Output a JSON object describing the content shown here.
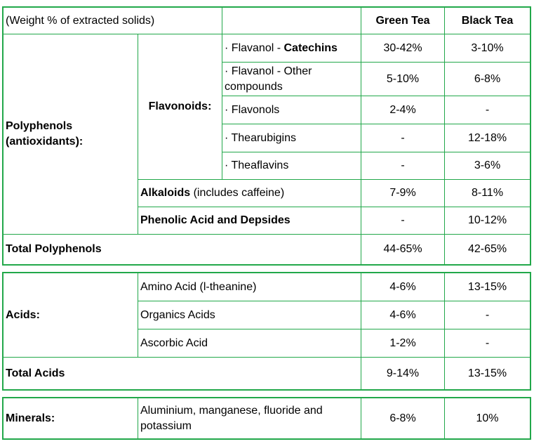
{
  "header": {
    "caption": "(Weight % of extracted solids)",
    "green": "Green Tea",
    "black": "Black Tea"
  },
  "polyphenols": {
    "label": "Polyphenols (antioxidants):",
    "flavonoids_label": "Flavonoids:",
    "flavonoid_rows": [
      {
        "prefix": "· Flavanol - ",
        "bold": "Catechins",
        "green": "30-42%",
        "black": "3-10%"
      },
      {
        "prefix": "· Flavanol - Other compounds",
        "bold": "",
        "green": "5-10%",
        "black": "6-8%"
      },
      {
        "prefix": "· Flavonols",
        "bold": "",
        "green": "2-4%",
        "black": "-"
      },
      {
        "prefix": "· Thearubigins",
        "bold": "",
        "green": "-",
        "black": "12-18%"
      },
      {
        "prefix": "· Theaflavins",
        "bold": "",
        "green": "-",
        "black": "3-6%"
      }
    ],
    "alkaloids": {
      "bold": "Alkaloids",
      "rest": " (includes caffeine)",
      "green": "7-9%",
      "black": "8-11%"
    },
    "phenolic": {
      "label": "Phenolic Acid and Depsides",
      "green": "-",
      "black": "10-12%"
    },
    "total": {
      "label": "Total Polyphenols",
      "green": "44-65%",
      "black": "42-65%"
    }
  },
  "acids": {
    "label": "Acids:",
    "rows": [
      {
        "label": "Amino Acid (l-theanine)",
        "green": "4-6%",
        "black": "13-15%"
      },
      {
        "label": "Organics Acids",
        "green": "4-6%",
        "black": "-"
      },
      {
        "label": "Ascorbic Acid",
        "green": "1-2%",
        "black": "-"
      }
    ],
    "total": {
      "label": "Total Acids",
      "green": "9-14%",
      "black": "13-15%"
    }
  },
  "minerals": {
    "label": "Minerals:",
    "desc": "Aluminium, manganese, fluoride and potassium",
    "green": "6-8%",
    "black": "10%"
  }
}
